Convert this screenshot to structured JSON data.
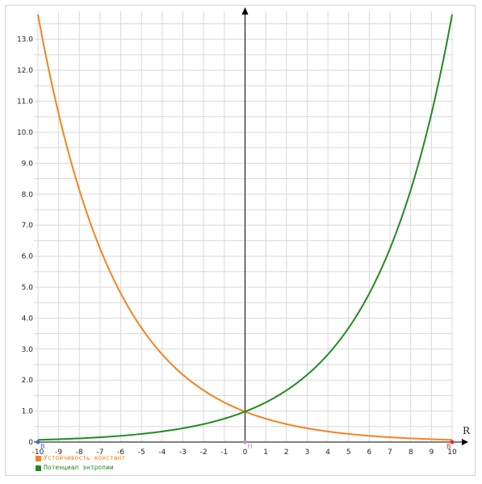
{
  "chart_data": {
    "type": "line",
    "xlabel": "R",
    "ylabel": "",
    "xlim": [
      -10,
      10
    ],
    "ylim": [
      0,
      13.8
    ],
    "x_ticks": [
      "-10",
      "-9",
      "-8",
      "-7",
      "-6",
      "-5",
      "-4",
      "-3",
      "-2",
      "-1",
      "0",
      "1",
      "2",
      "3",
      "4",
      "5",
      "6",
      "7",
      "8",
      "9",
      "10"
    ],
    "y_ticks": [
      "0",
      "1.0",
      "2.0",
      "3.0",
      "4.0",
      "5.0",
      "6.0",
      "7.0",
      "8.0",
      "9.0",
      "10.0",
      "11.0",
      "12.0",
      "13.0"
    ],
    "grid": true,
    "legend_position": "bottom-left",
    "series": [
      {
        "name": "Устойчивость констант",
        "color": "#f58220",
        "x": [
          -10,
          -9,
          -8,
          -7,
          -6,
          -5,
          -4,
          -3,
          -2,
          -1,
          0,
          1,
          2,
          3,
          4,
          5,
          6,
          7,
          8,
          9,
          10
        ],
        "y": [
          13.8,
          10.6,
          8.17,
          6.28,
          4.84,
          3.72,
          2.86,
          2.2,
          1.69,
          1.3,
          1.0,
          0.77,
          0.59,
          0.45,
          0.35,
          0.27,
          0.21,
          0.16,
          0.12,
          0.09,
          0.07
        ]
      },
      {
        "name": "Потенциал энтропии",
        "color": "#1f8c1f",
        "x": [
          -10,
          -9,
          -8,
          -7,
          -6,
          -5,
          -4,
          -3,
          -2,
          -1,
          0,
          1,
          2,
          3,
          4,
          5,
          6,
          7,
          8,
          9,
          10
        ],
        "y": [
          0.07,
          0.09,
          0.12,
          0.16,
          0.21,
          0.27,
          0.35,
          0.45,
          0.59,
          0.77,
          1.0,
          1.3,
          1.69,
          2.2,
          2.86,
          3.72,
          4.84,
          6.28,
          8.17,
          10.6,
          13.8
        ]
      }
    ],
    "points": [
      {
        "label": "B",
        "x": -10,
        "y": 0,
        "color": "#3b6fd6"
      },
      {
        "label": "H",
        "x": 0,
        "y": 0,
        "color": "#c58ad8"
      },
      {
        "label": "B",
        "x": 10,
        "y": 0,
        "color": "#e03030"
      }
    ]
  }
}
